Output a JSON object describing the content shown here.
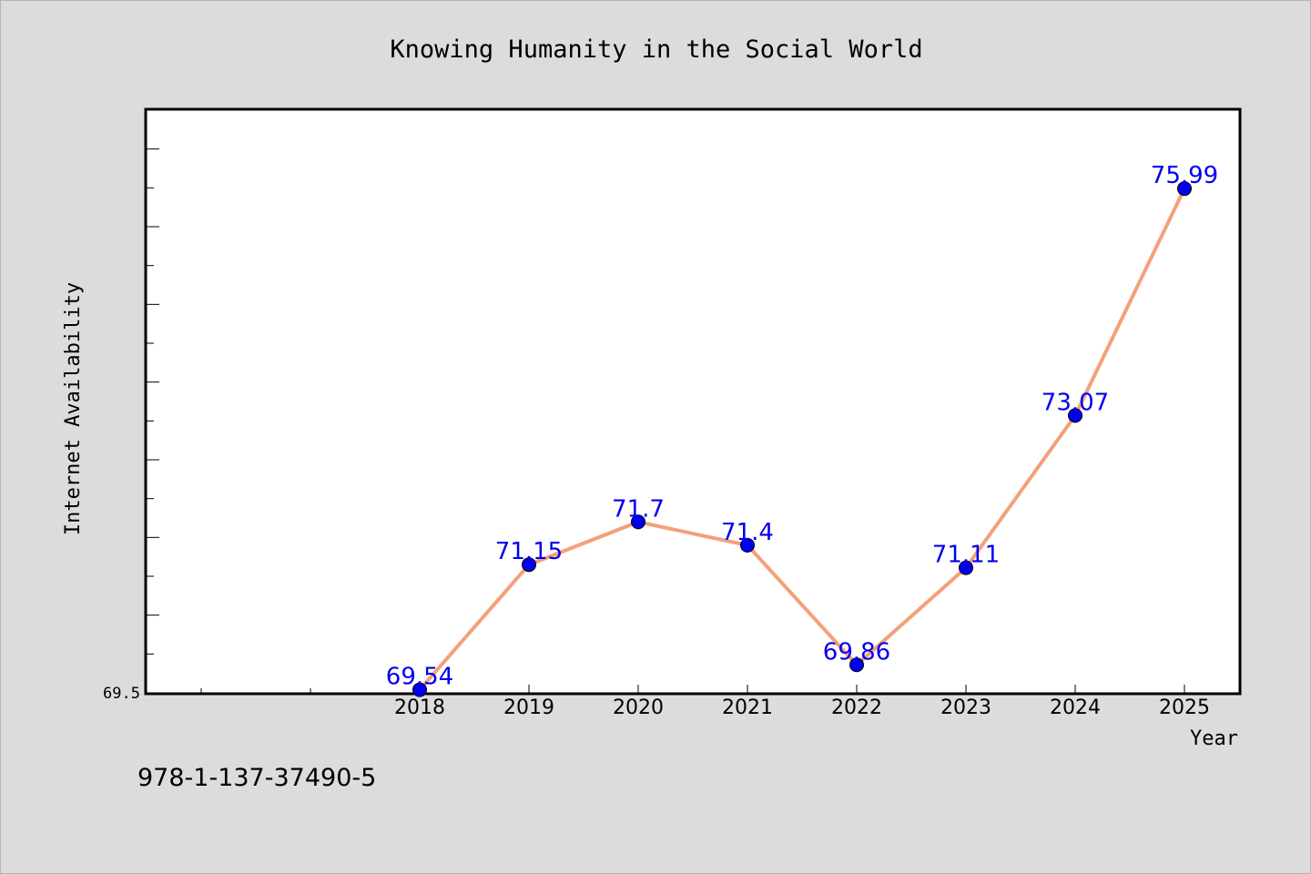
{
  "chart_data": {
    "type": "line",
    "title": "Knowing Humanity in the Social World",
    "xlabel": "Year",
    "ylabel": "Internet Availability",
    "x": [
      "2018",
      "2019",
      "2020",
      "2021",
      "2022",
      "2023",
      "2024",
      "2025"
    ],
    "series": [
      {
        "values": [
          69.54,
          71.15,
          71.7,
          71.4,
          69.86,
          71.11,
          73.07,
          75.99
        ],
        "labels": [
          "69.54",
          "71.15",
          "71.7",
          "71.4",
          "69.86",
          "71.11",
          "73.07",
          "75.99"
        ]
      }
    ],
    "ylim": [
      69.5,
      77.0
    ],
    "y_tick_label": "69.5",
    "grid": false,
    "legend": "none",
    "colors": {
      "line": "#f4a07a",
      "marker": "#0000ee",
      "label": "#0000ee",
      "plot_bg": "#ffffff",
      "page_bg": "#dcdcdc"
    }
  },
  "footer": {
    "isbn": "978-1-137-37490-5"
  }
}
